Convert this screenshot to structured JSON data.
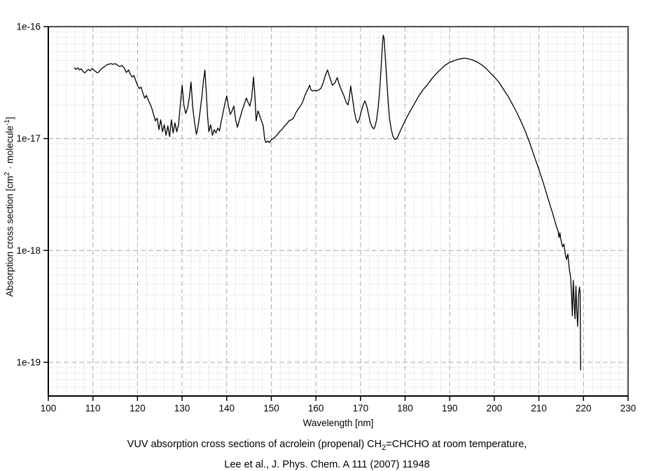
{
  "caption": {
    "line1_pre": "VUV absorption cross sections of acrolein (propenal) CH",
    "line1_sub": "2",
    "line1_post": "=CHCHO at room temperature,",
    "line2": "Lee et al., J. Phys. Chem. A 111 (2007) 11948"
  },
  "chart_data": {
    "type": "line",
    "title": "",
    "xlabel": "Wavelength [nm]",
    "ylabel_pre": "Absorption cross section [cm",
    "ylabel_sup1": "2",
    "ylabel_mid": " · molecule",
    "ylabel_sup2": "-1",
    "ylabel_post": "]",
    "legend": "none",
    "grid": {
      "major_color": "#aaaaaa",
      "minor_color": "#c8c8c8",
      "major_dash": "7 4",
      "minor_dash": "1.2 2.8"
    },
    "axis_color": "#000000",
    "curve_color": "#000000",
    "x_axis": {
      "min": 100,
      "max": 230,
      "major_step": 10,
      "minor_step": 2,
      "tick_labels": [
        "100",
        "110",
        "120",
        "130",
        "140",
        "150",
        "160",
        "170",
        "180",
        "190",
        "200",
        "210",
        "220",
        "230"
      ]
    },
    "y_axis": {
      "scale": "log",
      "min": 5e-20,
      "max": 1e-16,
      "tick_values": [
        1e-16,
        1e-17,
        1e-18,
        1e-19
      ],
      "tick_labels": [
        "1e-16",
        "1e-17",
        "1e-18",
        "1e-19"
      ]
    },
    "series": [
      {
        "name": "absorption cross section",
        "color": "#000000",
        "points": [
          [
            105.8,
            4.3e-17
          ],
          [
            106.2,
            4.15e-17
          ],
          [
            106.6,
            4.28e-17
          ],
          [
            107,
            4.1e-17
          ],
          [
            107.4,
            4.2e-17
          ],
          [
            107.8,
            3.97e-17
          ],
          [
            108.2,
            3.86e-17
          ],
          [
            108.6,
            4.03e-17
          ],
          [
            109,
            4.15e-17
          ],
          [
            109.4,
            4.03e-17
          ],
          [
            109.8,
            4.2e-17
          ],
          [
            110.2,
            4.1e-17
          ],
          [
            110.6,
            3.97e-17
          ],
          [
            111,
            3.86e-17
          ],
          [
            111.4,
            3.97e-17
          ],
          [
            111.8,
            4.15e-17
          ],
          [
            112.2,
            4.28e-17
          ],
          [
            112.6,
            4.4e-17
          ],
          [
            113,
            4.53e-17
          ],
          [
            113.5,
            4.6e-17
          ],
          [
            114,
            4.67e-17
          ],
          [
            114.5,
            4.6e-17
          ],
          [
            115,
            4.67e-17
          ],
          [
            115.5,
            4.53e-17
          ],
          [
            116,
            4.4e-17
          ],
          [
            116.5,
            4.47e-17
          ],
          [
            117,
            4.28e-17
          ],
          [
            117.5,
            3.9e-17
          ],
          [
            118,
            4.1e-17
          ],
          [
            118.4,
            3.76e-17
          ],
          [
            118.8,
            3.55e-17
          ],
          [
            119.2,
            3.65e-17
          ],
          [
            119.6,
            3.3e-17
          ],
          [
            120,
            2.98e-17
          ],
          [
            120.4,
            2.8e-17
          ],
          [
            120.8,
            2.88e-17
          ],
          [
            121.2,
            2.55e-17
          ],
          [
            121.6,
            2.3e-17
          ],
          [
            122,
            2.43e-17
          ],
          [
            122.4,
            2.2e-17
          ],
          [
            122.8,
            2.05e-17
          ],
          [
            123.2,
            1.86e-17
          ],
          [
            123.6,
            1.64e-17
          ],
          [
            124,
            1.44e-17
          ],
          [
            124.4,
            1.52e-17
          ],
          [
            124.8,
            1.2e-17
          ],
          [
            125.2,
            1.47e-17
          ],
          [
            125.6,
            1.15e-17
          ],
          [
            126,
            1.33e-17
          ],
          [
            126.4,
            1.07e-17
          ],
          [
            126.8,
            1.3e-17
          ],
          [
            127.2,
            1.04e-17
          ],
          [
            127.6,
            1.47e-17
          ],
          [
            128,
            1.12e-17
          ],
          [
            128.4,
            1.38e-17
          ],
          [
            128.8,
            1.15e-17
          ],
          [
            129.2,
            1.33e-17
          ],
          [
            129.6,
            2e-17
          ],
          [
            130,
            2.98e-17
          ],
          [
            130.4,
            2e-17
          ],
          [
            130.8,
            1.67e-17
          ],
          [
            131.2,
            1.86e-17
          ],
          [
            131.6,
            2.3e-17
          ],
          [
            132,
            3.2e-17
          ],
          [
            132.4,
            1.86e-17
          ],
          [
            132.8,
            1.38e-17
          ],
          [
            133.2,
            1.09e-17
          ],
          [
            133.6,
            1.3e-17
          ],
          [
            134,
            1.72e-17
          ],
          [
            134.4,
            2.3e-17
          ],
          [
            134.8,
            3.3e-17
          ],
          [
            135.1,
            4.1e-17
          ],
          [
            135.4,
            2.66e-17
          ],
          [
            135.7,
            1.6e-17
          ],
          [
            136,
            1.15e-17
          ],
          [
            136.4,
            1.33e-17
          ],
          [
            136.8,
            1.07e-17
          ],
          [
            137.2,
            1.2e-17
          ],
          [
            137.6,
            1.12e-17
          ],
          [
            138,
            1.24e-17
          ],
          [
            138.4,
            1.17e-17
          ],
          [
            138.8,
            1.44e-17
          ],
          [
            139.2,
            1.72e-17
          ],
          [
            139.6,
            2.05e-17
          ],
          [
            140,
            2.4e-17
          ],
          [
            140.4,
            1.95e-17
          ],
          [
            140.8,
            1.64e-17
          ],
          [
            141.2,
            1.77e-17
          ],
          [
            141.6,
            1.95e-17
          ],
          [
            142,
            1.47e-17
          ],
          [
            142.4,
            1.26e-17
          ],
          [
            142.8,
            1.44e-17
          ],
          [
            143.2,
            1.64e-17
          ],
          [
            143.6,
            1.86e-17
          ],
          [
            144,
            2.05e-17
          ],
          [
            144.4,
            2.3e-17
          ],
          [
            144.8,
            2.1e-17
          ],
          [
            145.2,
            1.95e-17
          ],
          [
            145.6,
            2.3e-17
          ],
          [
            146,
            3.55e-17
          ],
          [
            146.3,
            2.5e-17
          ],
          [
            146.6,
            1.44e-17
          ],
          [
            147,
            1.77e-17
          ],
          [
            147.4,
            1.6e-17
          ],
          [
            147.8,
            1.44e-17
          ],
          [
            148.2,
            1.3e-17
          ],
          [
            148.5,
            9.9e-18
          ],
          [
            148.8,
            9.2e-18
          ],
          [
            149.2,
            9.5e-18
          ],
          [
            149.6,
            9.2e-18
          ],
          [
            150,
            9.8e-18
          ],
          [
            150.5,
            1e-17
          ],
          [
            151,
            1.05e-17
          ],
          [
            151.5,
            1.1e-17
          ],
          [
            152,
            1.17e-17
          ],
          [
            152.5,
            1.22e-17
          ],
          [
            153,
            1.3e-17
          ],
          [
            153.5,
            1.36e-17
          ],
          [
            154,
            1.44e-17
          ],
          [
            154.5,
            1.47e-17
          ],
          [
            155,
            1.53e-17
          ],
          [
            155.5,
            1.7e-17
          ],
          [
            156,
            1.83e-17
          ],
          [
            156.5,
            1.95e-17
          ],
          [
            157,
            2.1e-17
          ],
          [
            157.5,
            2.4e-17
          ],
          [
            158,
            2.66e-17
          ],
          [
            158.3,
            2.8e-17
          ],
          [
            158.6,
            3e-17
          ],
          [
            158.9,
            2.72e-17
          ],
          [
            159.3,
            2.66e-17
          ],
          [
            159.7,
            2.69e-17
          ],
          [
            160.1,
            2.66e-17
          ],
          [
            160.6,
            2.72e-17
          ],
          [
            161.1,
            2.8e-17
          ],
          [
            161.6,
            3.12e-17
          ],
          [
            162.1,
            3.65e-17
          ],
          [
            162.6,
            4.1e-17
          ],
          [
            163.2,
            3.43e-17
          ],
          [
            163.7,
            3e-17
          ],
          [
            164.2,
            3.12e-17
          ],
          [
            164.8,
            3.5e-17
          ],
          [
            165.3,
            2.98e-17
          ],
          [
            165.8,
            2.66e-17
          ],
          [
            166.3,
            2.4e-17
          ],
          [
            166.8,
            2.1e-17
          ],
          [
            167.2,
            2e-17
          ],
          [
            167.5,
            2.3e-17
          ],
          [
            167.8,
            2.94e-17
          ],
          [
            168.2,
            2.3e-17
          ],
          [
            168.6,
            1.77e-17
          ],
          [
            169,
            1.47e-17
          ],
          [
            169.4,
            1.38e-17
          ],
          [
            169.8,
            1.52e-17
          ],
          [
            170.2,
            1.77e-17
          ],
          [
            170.6,
            2e-17
          ],
          [
            171,
            2.17e-17
          ],
          [
            171.4,
            1.95e-17
          ],
          [
            171.8,
            1.64e-17
          ],
          [
            172.2,
            1.38e-17
          ],
          [
            172.6,
            1.27e-17
          ],
          [
            173,
            1.22e-17
          ],
          [
            173.3,
            1.3e-17
          ],
          [
            173.6,
            1.47e-17
          ],
          [
            174,
            1.95e-17
          ],
          [
            174.3,
            2.66e-17
          ],
          [
            174.6,
            4.1e-17
          ],
          [
            174.9,
            6.8e-17
          ],
          [
            175.1,
            8.4e-17
          ],
          [
            175.3,
            7.8e-17
          ],
          [
            175.6,
            5e-17
          ],
          [
            175.9,
            3.3e-17
          ],
          [
            176.2,
            2.16e-17
          ],
          [
            176.5,
            1.52e-17
          ],
          [
            176.9,
            1.2e-17
          ],
          [
            177.3,
            1.04e-17
          ],
          [
            177.7,
            9.8e-18
          ],
          [
            178.1,
            9.9e-18
          ],
          [
            178.5,
            1.07e-17
          ],
          [
            179,
            1.19e-17
          ],
          [
            179.5,
            1.31e-17
          ],
          [
            180,
            1.44e-17
          ],
          [
            181,
            1.72e-17
          ],
          [
            182,
            2.02e-17
          ],
          [
            183,
            2.37e-17
          ],
          [
            184,
            2.72e-17
          ],
          [
            185,
            3.03e-17
          ],
          [
            186,
            3.43e-17
          ],
          [
            187,
            3.8e-17
          ],
          [
            188,
            4.16e-17
          ],
          [
            189,
            4.53e-17
          ],
          [
            190,
            4.8e-17
          ],
          [
            191,
            4.97e-17
          ],
          [
            192,
            5.12e-17
          ],
          [
            193,
            5.2e-17
          ],
          [
            193.5,
            5.22e-17
          ],
          [
            194,
            5.18e-17
          ],
          [
            195,
            5.05e-17
          ],
          [
            196,
            4.87e-17
          ],
          [
            197,
            4.6e-17
          ],
          [
            198,
            4.28e-17
          ],
          [
            199,
            3.9e-17
          ],
          [
            200,
            3.55e-17
          ],
          [
            201,
            3.2e-17
          ],
          [
            202,
            2.77e-17
          ],
          [
            203,
            2.42e-17
          ],
          [
            204,
            2.05e-17
          ],
          [
            205,
            1.72e-17
          ],
          [
            206,
            1.42e-17
          ],
          [
            207,
            1.15e-17
          ],
          [
            208,
            9e-18
          ],
          [
            209,
            6.9e-18
          ],
          [
            210,
            5.3e-18
          ],
          [
            211,
            4e-18
          ],
          [
            212,
            2.95e-18
          ],
          [
            212.5,
            2.55e-18
          ],
          [
            213,
            2.2e-18
          ],
          [
            213.5,
            1.88e-18
          ],
          [
            214,
            1.6e-18
          ],
          [
            214.3,
            1.5e-18
          ],
          [
            214.5,
            1.3e-18
          ],
          [
            214.7,
            1.44e-18
          ],
          [
            215,
            1.2e-18
          ],
          [
            215.3,
            1.08e-18
          ],
          [
            215.6,
            1.14e-18
          ],
          [
            215.9,
            9.3e-19
          ],
          [
            216.2,
            8.3e-19
          ],
          [
            216.5,
            9.3e-19
          ],
          [
            216.8,
            6.9e-19
          ],
          [
            217.1,
            5.8e-19
          ],
          [
            217.3,
            4.3e-19
          ],
          [
            217.5,
            2.6e-19
          ],
          [
            217.7,
            5.4e-19
          ],
          [
            217.9,
            3.5e-19
          ],
          [
            218.1,
            2.45e-19
          ],
          [
            218.3,
            4.8e-19
          ],
          [
            218.5,
            2.8e-19
          ],
          [
            218.7,
            2.1e-19
          ],
          [
            218.9,
            4e-19
          ],
          [
            219.1,
            4.7e-19
          ],
          [
            219.25,
            4.2e-19
          ],
          [
            219.35,
            8.5e-20
          ]
        ]
      }
    ]
  }
}
